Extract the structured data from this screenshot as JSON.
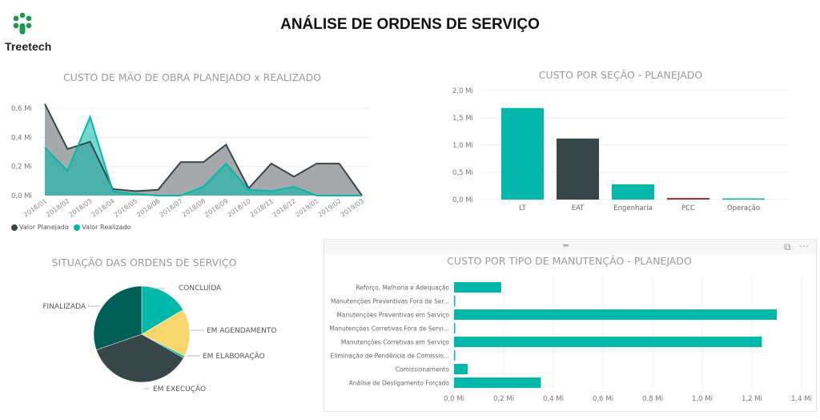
{
  "header": {
    "title": "ANÁLISE DE ORDENS DE SERVIÇO",
    "logo_text": "Treetech",
    "logo_color": "#1a9a4f"
  },
  "colors": {
    "teal": "#01b8aa",
    "dark": "#374649",
    "dark_green": "#005f56",
    "yellow": "#f5d76e",
    "red": "#a83232",
    "grey_area": "#a6a9ab"
  },
  "focus_controls": {
    "drag_handle": "═",
    "focus_mode": "⧉",
    "more_options": "⋯"
  },
  "chart_data": [
    {
      "id": "labor-cost",
      "type": "area",
      "title": "CUSTO DE MÃO DE OBRA PLANEJADO x REALIZADO",
      "xlabel": "",
      "ylabel": "",
      "ylim": [
        0,
        0.65
      ],
      "yticks": [
        "0,6 Mi",
        "0,4 Mi",
        "0,2 Mi",
        "0,0 Mi"
      ],
      "grid": true,
      "legend_position": "bottom-left",
      "categories": [
        "2018/01",
        "2018/02",
        "2018/03",
        "2018/04",
        "2018/05",
        "2018/06",
        "2018/07",
        "2018/08",
        "2018/09",
        "2018/10",
        "2018/11",
        "2018/12",
        "2019/01",
        "2019/02",
        "2019/03"
      ],
      "series": [
        {
          "name": "Valor Planejado",
          "color": "#374649",
          "values": [
            0.63,
            0.32,
            0.37,
            0.045,
            0.03,
            0.04,
            0.23,
            0.23,
            0.35,
            0.05,
            0.22,
            0.13,
            0.22,
            0.22,
            0.0
          ]
        },
        {
          "name": "Valor Realizado",
          "color": "#01b8aa",
          "values": [
            0.33,
            0.17,
            0.54,
            0.03,
            0.01,
            0.0,
            0.0,
            0.06,
            0.22,
            0.04,
            0.03,
            0.06,
            0.0,
            0.0,
            0.0
          ]
        }
      ]
    },
    {
      "id": "cost-by-section",
      "type": "bar",
      "title": "CUSTO POR SEÇÃO - PLANEJADO",
      "xlabel": "",
      "ylabel": "",
      "ylim": [
        0,
        2.0
      ],
      "yticks": [
        "2,0 Mi",
        "1,5 Mi",
        "1,0 Mi",
        "0,5 Mi",
        "0,0 Mi"
      ],
      "grid": true,
      "categories": [
        "LT",
        "EAT",
        "Engenharia",
        "PCC",
        "Operação"
      ],
      "values": [
        1.68,
        1.12,
        0.28,
        0.03,
        0.01
      ],
      "bar_colors": [
        "#01b8aa",
        "#374649",
        "#01b8aa",
        "#a83232",
        "#01b8aa"
      ]
    },
    {
      "id": "order-status",
      "type": "pie",
      "title": "SITUAÇÃO DAS ORDENS DE SERVIÇO",
      "slices": [
        {
          "label": "CONCLUÍDA",
          "value": 16.5,
          "color": "#01b8aa"
        },
        {
          "label": "EM AGENDAMENTO",
          "value": 16.0,
          "color": "#f5d76e"
        },
        {
          "label": "EM ELABORAÇÃO",
          "value": 0.7,
          "color": "#01b8aa"
        },
        {
          "label": "EM EXECUÇÃO",
          "value": 36.5,
          "color": "#374649"
        },
        {
          "label": "FINALIZADA",
          "value": 30.3,
          "color": "#005f56"
        }
      ]
    },
    {
      "id": "cost-by-maintenance-type",
      "type": "bar",
      "orientation": "horizontal",
      "title": "CUSTO POR TIPO DE MANUTENÇÃO - PLANEJADO",
      "xlabel": "",
      "ylabel": "",
      "xlim": [
        0,
        1.4
      ],
      "xticks": [
        "0,0 Mi",
        "0,2 Mi",
        "0,4 Mi",
        "0,6 Mi",
        "0,8 Mi",
        "1,0 Mi",
        "1,2 Mi",
        "1,4 Mi"
      ],
      "grid": true,
      "categories": [
        "Reforço, Melhoria e Adequação",
        "Manutenções Preventivas Fora de Ser...",
        "Manutenções Preventivas em Serviço",
        "Manutenções Corretivas Fora de Servi...",
        "Manutenções Corretivas em Serviço",
        "Eliminação de Pendência de Comissio...",
        "Comissionamento",
        "Análise de Desligamento Forçado"
      ],
      "values": [
        0.19,
        0.002,
        1.3,
        0.002,
        1.24,
        0.002,
        0.055,
        0.35
      ],
      "bar_color": "#01b8aa"
    }
  ]
}
